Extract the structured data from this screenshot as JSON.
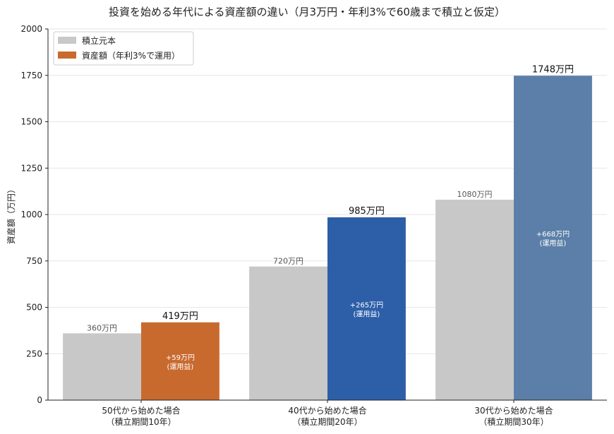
{
  "chart_data": {
    "type": "bar",
    "title": "投資を始める年代による資産額の違い（月3万円・年利3%で60歳まで積立と仮定）",
    "ylabel": "資産額（万円）",
    "xlabel": "",
    "ylim": [
      0,
      2000
    ],
    "yticks": [
      "0",
      "250",
      "500",
      "750",
      "1000",
      "1250",
      "1500",
      "1750",
      "2000"
    ],
    "ytick_values": [
      0,
      250,
      500,
      750,
      1000,
      1250,
      1500,
      1750,
      2000
    ],
    "grid": "horizontal",
    "legend_position": "top-left",
    "categories": [
      {
        "line1": "50代から始めた場合",
        "line2": "（積立期間10年）"
      },
      {
        "line1": "40代から始めた場合",
        "line2": "（積立期間20年）"
      },
      {
        "line1": "30代から始めた場合",
        "line2": "（積立期間30年）"
      }
    ],
    "series": [
      {
        "name": "積立元本",
        "values": [
          360,
          720,
          1080
        ],
        "value_labels": [
          "360万円",
          "720万円",
          "1080万円"
        ],
        "color": "#c8c8c8"
      },
      {
        "name": "資産額（年利3%で運用）",
        "values": [
          419,
          985,
          1748
        ],
        "value_labels": [
          "419万円",
          "985万円",
          "1748万円"
        ],
        "gain_labels": [
          {
            "line1": "+59万円",
            "line2": "(運用益)"
          },
          {
            "line1": "+265万円",
            "line2": "(運用益)"
          },
          {
            "line1": "+668万円",
            "line2": "(運用益)"
          }
        ],
        "colors": [
          "#c86a2e",
          "#2d5ea8",
          "#5b7fa8"
        ]
      }
    ],
    "legend_colors": [
      "#c8c8c8",
      "#c86a2e"
    ]
  }
}
